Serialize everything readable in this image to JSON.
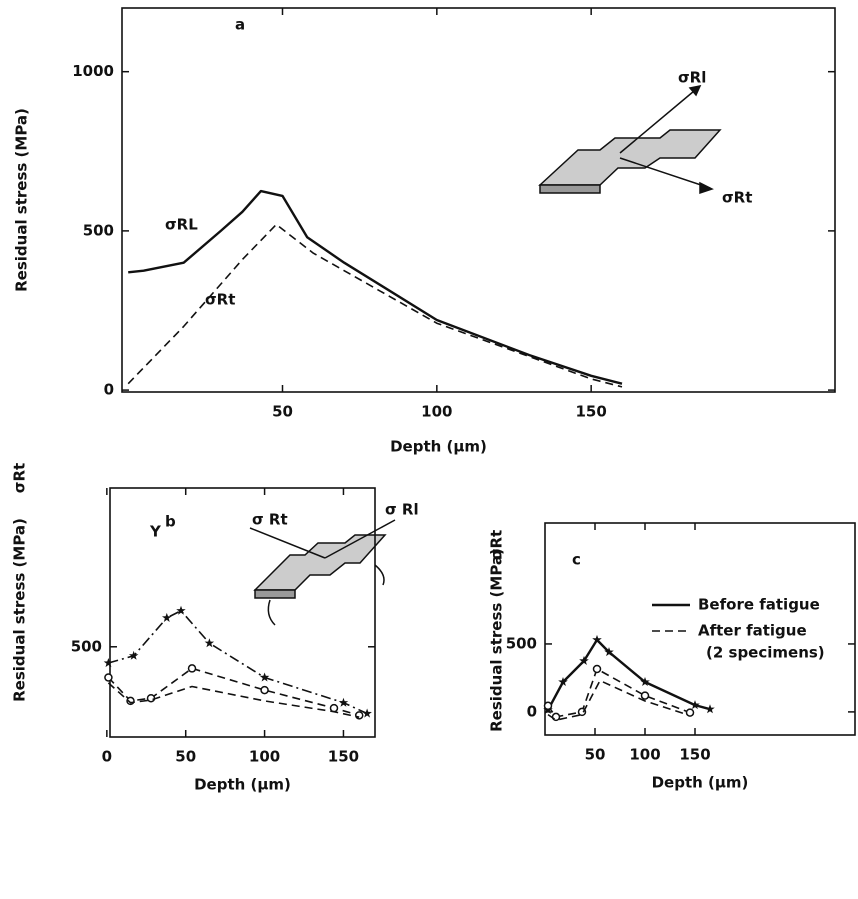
{
  "chart_data": [
    {
      "type": "line",
      "label": "a",
      "x_label": "Depth (µm)",
      "y_label": "Residual stress (MPa)",
      "xlim": [
        -2,
        229
      ],
      "ylim": [
        -6,
        1200
      ],
      "xticks": [
        50,
        100,
        150
      ],
      "yticks": [
        0,
        500,
        1000
      ],
      "series": [
        {
          "name": "σRL",
          "color": "#111",
          "style": "solid",
          "marker": null,
          "x": [
            0,
            5,
            18,
            30,
            37,
            43,
            50,
            58,
            70,
            100,
            130,
            150,
            160
          ],
          "values": [
            370,
            375,
            400,
            500,
            560,
            625,
            610,
            480,
            400,
            220,
            110,
            45,
            20
          ]
        },
        {
          "name": "σRt",
          "color": "#111",
          "style": "dashed",
          "marker": null,
          "x": [
            0,
            18,
            37,
            48,
            60,
            100,
            150,
            160
          ],
          "values": [
            20,
            200,
            410,
            520,
            430,
            210,
            35,
            10
          ]
        }
      ],
      "annotations": [
        "σRl",
        "σRt"
      ]
    },
    {
      "type": "line",
      "label": "b",
      "x_label": "Depth (µm)",
      "y_label": "Residual stress (MPa)",
      "y_label_note": "σRt",
      "xlim": [
        2,
        170
      ],
      "ylim": [
        0,
        1380
      ],
      "xticks": [
        0,
        50,
        100,
        150
      ],
      "yticks": [
        500
      ],
      "series": [
        {
          "color": "#111",
          "style": "dashdot",
          "marker": "star",
          "x": [
            1,
            17,
            38,
            47,
            65,
            100,
            150,
            165
          ],
          "values": [
            410,
            450,
            660,
            700,
            520,
            330,
            190,
            130
          ]
        },
        {
          "color": "#111",
          "style": "dashed",
          "marker": "circle",
          "x": [
            1,
            15,
            28,
            54,
            100,
            144,
            160
          ],
          "values": [
            330,
            200,
            215,
            380,
            260,
            160,
            120
          ]
        },
        {
          "color": "#111",
          "style": "dashed",
          "marker": null,
          "x": [
            1,
            15,
            28,
            54,
            100,
            144,
            160
          ],
          "values": [
            300,
            190,
            205,
            280,
            200,
            140,
            110
          ]
        }
      ],
      "annotations": [
        "Y",
        "σ Rt",
        "σ Rl"
      ]
    },
    {
      "type": "line",
      "label": "c",
      "x_label": "Depth (µm)",
      "y_label": "Residual stress (MPa)",
      "y_label_note": "σRt",
      "xlim": [
        0,
        310
      ],
      "ylim": [
        -170,
        1390
      ],
      "xticks": [
        50,
        100,
        150
      ],
      "yticks": [
        0,
        500
      ],
      "legend_note": "(2 specimens)",
      "series": [
        {
          "name": "Before fatigue",
          "color": "#111",
          "style": "solid",
          "marker": "star",
          "x": [
            3,
            18,
            39,
            52,
            64,
            100,
            150,
            165
          ],
          "values": [
            15,
            220,
            375,
            530,
            440,
            220,
            50,
            20
          ]
        },
        {
          "name": "After fatigue",
          "color": "#111",
          "style": "dashed",
          "marker": "circle",
          "x": [
            3,
            11,
            37,
            52,
            100,
            145
          ],
          "values": [
            45,
            -37,
            0,
            316,
            120,
            -5
          ]
        },
        {
          "color": "#111",
          "style": "dashed",
          "marker": null,
          "x": [
            3,
            11,
            37,
            55,
            100,
            140
          ],
          "values": [
            -20,
            -60,
            -20,
            230,
            80,
            -15
          ]
        }
      ]
    }
  ]
}
